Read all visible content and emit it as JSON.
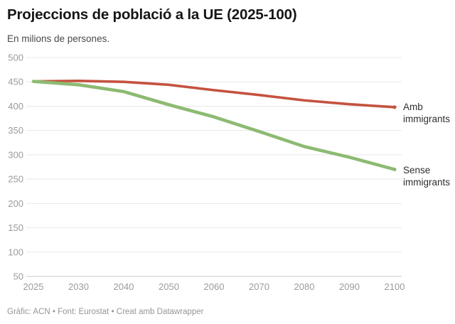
{
  "header": {
    "title": "Projeccions de població a la UE (2025-100)",
    "subtitle": "En milions de persones."
  },
  "footer": {
    "credit": "Gràfic: ACN • Font: Eurostat • Creat amb Datawrapper"
  },
  "colors": {
    "amb_immigrants": "#c4523f",
    "sense_immigrants": "#8dba72",
    "axis_text": "#9b9b9b",
    "gridline": "#e8e8e8",
    "baseline": "#c9c9c9"
  },
  "chart_data": {
    "type": "line",
    "title": "Projeccions de població a la UE (2025-100)",
    "subtitle": "En milions de persones.",
    "xlabel": "",
    "ylabel": "milions de persones",
    "categories": [
      "2025",
      "2030",
      "2040",
      "2050",
      "2060",
      "2070",
      "2080",
      "2090",
      "2100"
    ],
    "series": [
      {
        "name": "Amb immigrants",
        "color": "#c4523f",
        "values": [
          451,
          452,
          450,
          444,
          433,
          423,
          412,
          404,
          398
        ]
      },
      {
        "name": "Sense immigrants",
        "color": "#8dba72",
        "values": [
          451,
          444,
          430,
          403,
          378,
          348,
          317,
          295,
          270
        ]
      }
    ],
    "ylim": [
      50,
      500
    ],
    "yticks": [
      500,
      450,
      400,
      350,
      300,
      250,
      200,
      150,
      100,
      50
    ],
    "grid": true,
    "legend_position": "right of line ends"
  }
}
